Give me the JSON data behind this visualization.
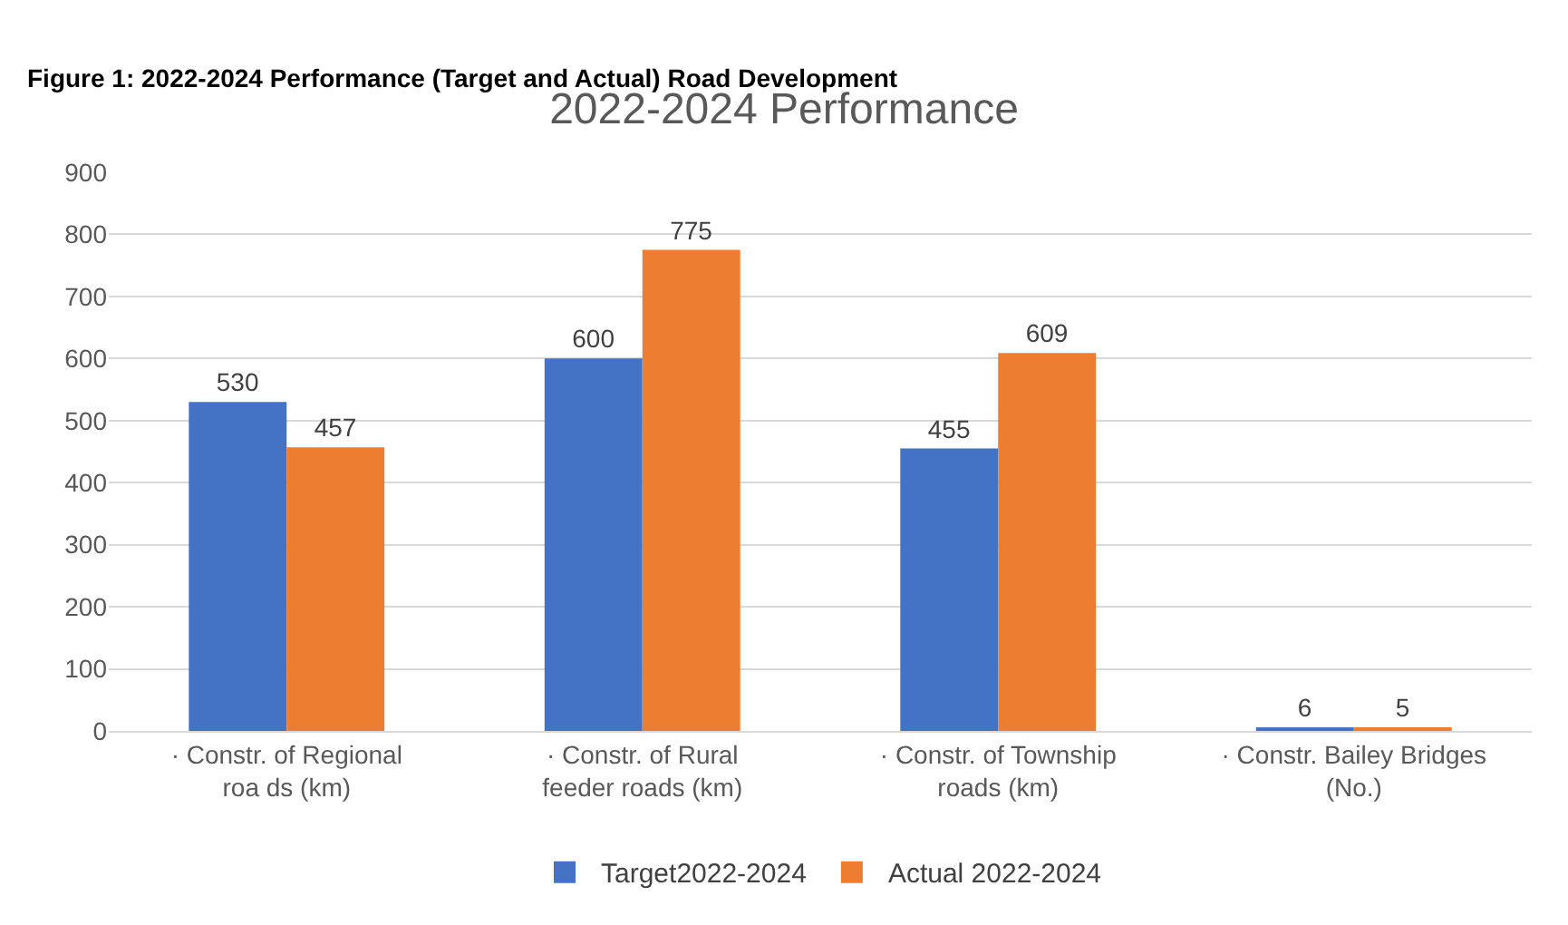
{
  "chart_data": {
    "type": "bar",
    "title": "2022-2024 Performance",
    "annotations": [
      "Figure 1: 2022-2024 Performance (Target and Actual) Road Development"
    ],
    "categories": [
      "· Constr. of Regional roa ds (km)",
      "· Constr. of Rural feeder roads (km)",
      "· Constr. of Township roads (km)",
      "· Constr. Bailey Bridges (No.)"
    ],
    "series": [
      {
        "name": "Target2022-2024",
        "color": "#4472c4",
        "values": [
          530,
          600,
          455,
          6
        ]
      },
      {
        "name": "Actual 2022-2024",
        "color": "#ed7d31",
        "values": [
          457,
          775,
          609,
          5
        ]
      }
    ],
    "ylim": [
      0,
      900
    ],
    "yticks": [
      0,
      100,
      200,
      300,
      400,
      500,
      600,
      700,
      800,
      900
    ],
    "grid": "y",
    "data_labels": true,
    "legend": "bottom"
  }
}
